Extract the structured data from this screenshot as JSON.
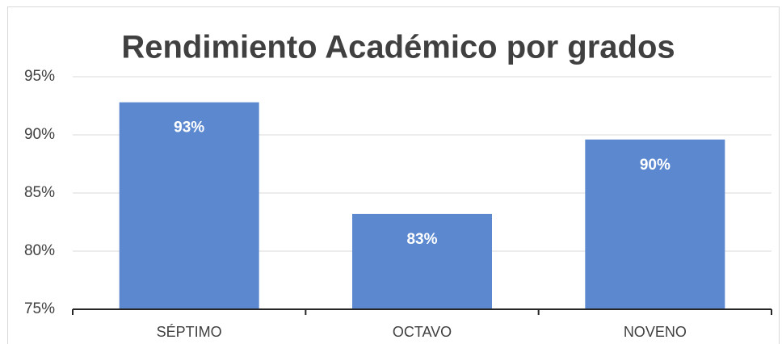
{
  "chart_data": {
    "type": "bar",
    "title": "Rendimiento Académico por grados",
    "categories": [
      "SÉPTIMO",
      "OCTAVO",
      "NOVENO"
    ],
    "values": [
      92.8,
      83.2,
      89.6
    ],
    "value_labels": [
      "93%",
      "83%",
      "90%"
    ],
    "color": "#5b88cf",
    "ylim": [
      75,
      95
    ],
    "yticks": [
      {
        "value": 75,
        "label": "75%"
      },
      {
        "value": 80,
        "label": "80%"
      },
      {
        "value": 85,
        "label": "85%"
      },
      {
        "value": 90,
        "label": "90%"
      },
      {
        "value": 95,
        "label": "95%"
      }
    ],
    "grid": true
  }
}
